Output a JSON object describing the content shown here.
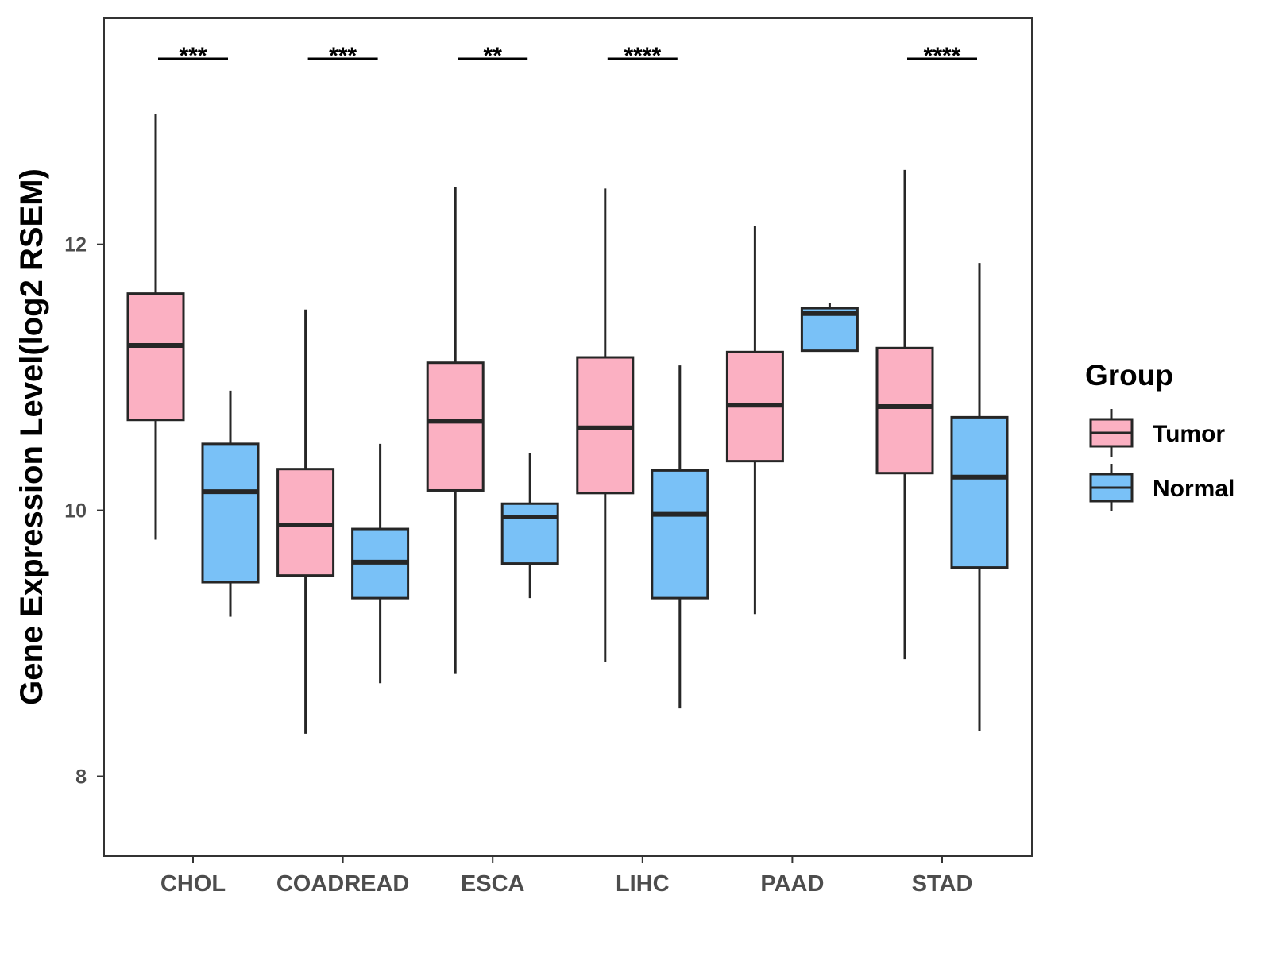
{
  "chart_data": {
    "type": "boxplot",
    "ylabel": "Gene Expression Level(log2 RSEM)",
    "xlabel": "",
    "ylim": [
      7.4,
      13.7
    ],
    "yticks": [
      8,
      10,
      12
    ],
    "yticklabels": [
      "8",
      "10",
      "12"
    ],
    "categories": [
      "CHOL",
      "COADREAD",
      "ESCA",
      "LIHC",
      "PAAD",
      "STAD"
    ],
    "series": [
      {
        "name": "Tumor",
        "color": "#FBB0C2",
        "boxes": [
          {
            "min": 9.78,
            "q1": 10.68,
            "median": 11.24,
            "q3": 11.63,
            "max": 12.98
          },
          {
            "min": 8.32,
            "q1": 9.51,
            "median": 9.89,
            "q3": 10.31,
            "max": 11.51
          },
          {
            "min": 8.77,
            "q1": 10.15,
            "median": 10.67,
            "q3": 11.11,
            "max": 12.43
          },
          {
            "min": 8.86,
            "q1": 10.13,
            "median": 10.62,
            "q3": 11.15,
            "max": 12.42
          },
          {
            "min": 9.22,
            "q1": 10.37,
            "median": 10.79,
            "q3": 11.19,
            "max": 12.14
          },
          {
            "min": 8.88,
            "q1": 10.28,
            "median": 10.78,
            "q3": 11.22,
            "max": 12.56
          }
        ]
      },
      {
        "name": "Normal",
        "color": "#79C1F7",
        "boxes": [
          {
            "min": 9.2,
            "q1": 9.46,
            "median": 10.14,
            "q3": 10.5,
            "max": 10.9
          },
          {
            "min": 8.7,
            "q1": 9.34,
            "median": 9.61,
            "q3": 9.86,
            "max": 10.5
          },
          {
            "min": 9.34,
            "q1": 9.6,
            "median": 9.95,
            "q3": 10.05,
            "max": 10.43
          },
          {
            "min": 8.51,
            "q1": 9.34,
            "median": 9.97,
            "q3": 10.3,
            "max": 11.09
          },
          {
            "min": 11.2,
            "q1": 11.2,
            "median": 11.48,
            "q3": 11.52,
            "max": 11.56
          },
          {
            "min": 8.34,
            "q1": 9.57,
            "median": 10.25,
            "q3": 10.7,
            "max": 11.86
          }
        ]
      }
    ],
    "significance": [
      "***",
      "***",
      "**",
      "****",
      "",
      "****"
    ],
    "legend": {
      "title": "Group",
      "position": "right"
    }
  }
}
